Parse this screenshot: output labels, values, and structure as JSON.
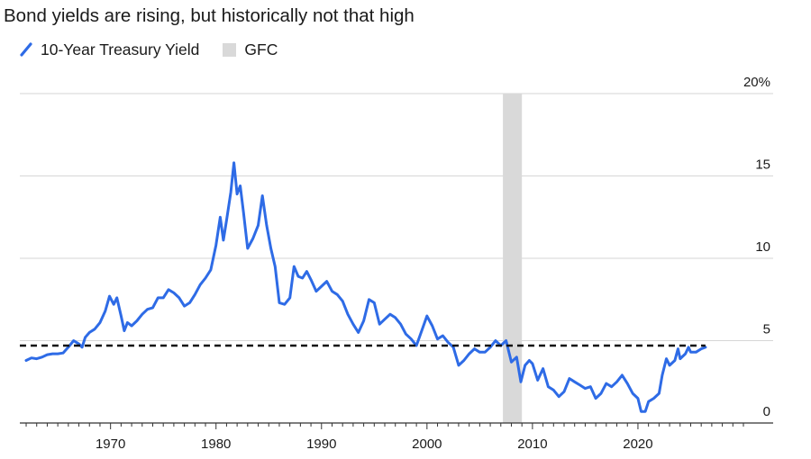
{
  "title": "Bond yields are rising, but historically not that high",
  "legend": {
    "series_label": "10-Year Treasury Yield",
    "shade_label": "GFC"
  },
  "colors": {
    "series": "#2e6be6",
    "shade": "#d9d9d9",
    "reference_line": "#111111",
    "grid": "#d6d6d6",
    "axis": "#333333"
  },
  "chart_data": {
    "type": "line",
    "title": "Bond yields are rising, but historically not that high",
    "xlabel": "",
    "ylabel": "",
    "xlim": [
      1961.4,
      2030.0
    ],
    "ylim": [
      0,
      20
    ],
    "x_ticks": [
      1970,
      1980,
      1990,
      2000,
      2010,
      2020
    ],
    "x_tick_labels": [
      "1970",
      "1980",
      "1990",
      "2000",
      "2010",
      "2020"
    ],
    "y_ticks": [
      0,
      5,
      10,
      15,
      20
    ],
    "y_tick_labels": [
      "0",
      "5",
      "10",
      "15",
      "20%"
    ],
    "grid": "horizontal",
    "legend_position": "top-left",
    "shaded_regions": [
      {
        "name": "GFC",
        "x_start": 2007.2,
        "x_end": 2009.0
      }
    ],
    "reference_lines": [
      {
        "y": 4.7,
        "style": "dashed"
      }
    ],
    "series": [
      {
        "name": "10-Year Treasury Yield",
        "x": [
          1962.0,
          1962.5,
          1963.0,
          1963.5,
          1964.0,
          1964.5,
          1965.0,
          1965.5,
          1966.0,
          1966.5,
          1967.0,
          1967.3,
          1967.6,
          1968.0,
          1968.5,
          1969.0,
          1969.5,
          1969.9,
          1970.3,
          1970.6,
          1971.0,
          1971.3,
          1971.6,
          1972.0,
          1972.5,
          1973.0,
          1973.5,
          1974.0,
          1974.5,
          1975.0,
          1975.5,
          1976.0,
          1976.5,
          1977.0,
          1977.5,
          1978.0,
          1978.5,
          1979.0,
          1979.5,
          1980.0,
          1980.4,
          1980.7,
          1981.0,
          1981.4,
          1981.7,
          1982.0,
          1982.3,
          1982.6,
          1983.0,
          1983.5,
          1984.0,
          1984.4,
          1984.8,
          1985.2,
          1985.6,
          1986.0,
          1986.5,
          1987.0,
          1987.4,
          1987.8,
          1988.2,
          1988.6,
          1989.0,
          1989.5,
          1990.0,
          1990.5,
          1991.0,
          1991.5,
          1992.0,
          1992.5,
          1993.0,
          1993.5,
          1994.0,
          1994.5,
          1995.0,
          1995.5,
          1996.0,
          1996.5,
          1997.0,
          1997.5,
          1998.0,
          1998.5,
          1999.0,
          1999.5,
          2000.0,
          2000.5,
          2001.0,
          2001.5,
          2002.0,
          2002.5,
          2003.0,
          2003.5,
          2004.0,
          2004.5,
          2005.0,
          2005.5,
          2006.0,
          2006.5,
          2007.0,
          2007.5,
          2008.0,
          2008.5,
          2008.9,
          2009.3,
          2009.7,
          2010.0,
          2010.5,
          2011.0,
          2011.5,
          2012.0,
          2012.5,
          2013.0,
          2013.5,
          2014.0,
          2014.5,
          2015.0,
          2015.5,
          2016.0,
          2016.5,
          2017.0,
          2017.5,
          2018.0,
          2018.5,
          2019.0,
          2019.5,
          2020.0,
          2020.3,
          2020.7,
          2021.0,
          2021.5,
          2022.0,
          2022.3,
          2022.7,
          2023.0,
          2023.5,
          2023.8,
          2024.0,
          2024.5,
          2024.8,
          2025.0,
          2025.5,
          2026.0,
          2026.4
        ],
        "values": [
          3.8,
          3.95,
          3.9,
          4.0,
          4.15,
          4.2,
          4.2,
          4.25,
          4.6,
          5.0,
          4.8,
          4.6,
          5.2,
          5.5,
          5.7,
          6.1,
          6.8,
          7.7,
          7.2,
          7.6,
          6.5,
          5.6,
          6.1,
          5.9,
          6.2,
          6.6,
          6.9,
          7.0,
          7.6,
          7.6,
          8.1,
          7.9,
          7.6,
          7.1,
          7.3,
          7.8,
          8.4,
          8.8,
          9.3,
          10.8,
          12.5,
          11.1,
          12.3,
          14.0,
          15.8,
          13.9,
          14.4,
          12.8,
          10.6,
          11.2,
          12.0,
          13.8,
          12.0,
          10.6,
          9.5,
          7.3,
          7.2,
          7.6,
          9.5,
          8.9,
          8.8,
          9.2,
          8.7,
          8.0,
          8.3,
          8.6,
          8.0,
          7.8,
          7.4,
          6.6,
          6.0,
          5.5,
          6.2,
          7.5,
          7.3,
          6.0,
          6.3,
          6.6,
          6.4,
          6.0,
          5.4,
          5.1,
          4.7,
          5.6,
          6.5,
          5.9,
          5.1,
          5.3,
          4.9,
          4.6,
          3.5,
          3.8,
          4.2,
          4.5,
          4.3,
          4.3,
          4.6,
          5.0,
          4.7,
          5.0,
          3.7,
          4.0,
          2.5,
          3.5,
          3.8,
          3.6,
          2.6,
          3.3,
          2.2,
          2.0,
          1.6,
          1.9,
          2.7,
          2.5,
          2.3,
          2.1,
          2.2,
          1.5,
          1.8,
          2.4,
          2.2,
          2.5,
          2.9,
          2.4,
          1.8,
          1.5,
          0.7,
          0.7,
          1.3,
          1.5,
          1.8,
          2.9,
          3.9,
          3.5,
          3.8,
          4.5,
          3.9,
          4.2,
          4.6,
          4.3,
          4.3,
          4.5,
          4.6
        ]
      }
    ]
  }
}
